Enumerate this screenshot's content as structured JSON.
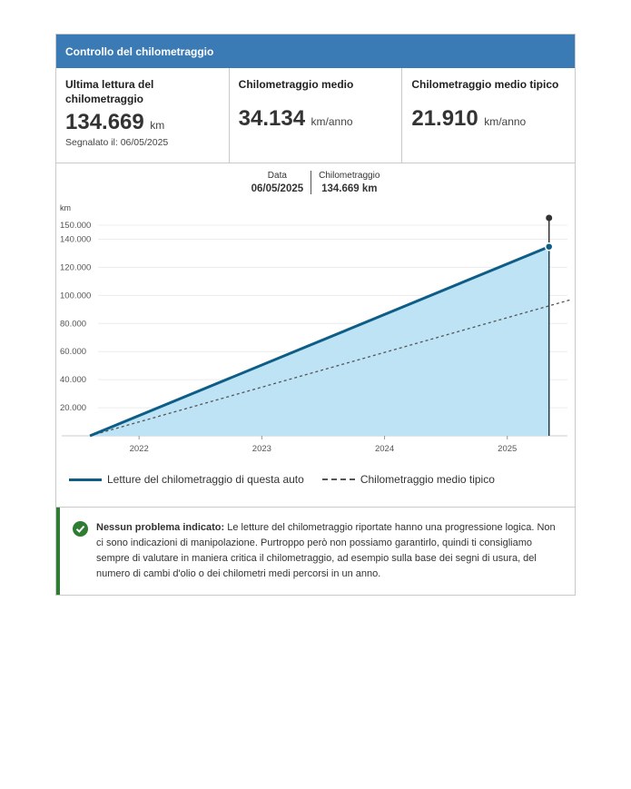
{
  "header": {
    "title": "Controllo del chilometraggio"
  },
  "stats": [
    {
      "label": "Ultima lettura del chilometraggio",
      "value": "134.669",
      "unit": "km",
      "note": "Segnalato il: 06/05/2025"
    },
    {
      "label": "Chilometraggio medio",
      "value": "34.134",
      "unit": "km/anno"
    },
    {
      "label": "Chilometraggio medio tipico",
      "value": "21.910",
      "unit": "km/anno"
    }
  ],
  "tooltip": {
    "date_label": "Data",
    "date_value": "06/05/2025",
    "km_label": "Chilometraggio",
    "km_value": "134.669 km"
  },
  "colors": {
    "header": "#3a7ab5",
    "line": "#0d5d87",
    "fill": "#bde3f5",
    "success": "#2e7d32"
  },
  "chart_data": {
    "type": "area",
    "ylabel": "km",
    "yticks": [
      20000,
      40000,
      60000,
      80000,
      100000,
      120000,
      140000,
      150000
    ],
    "ytick_labels": [
      "20.000",
      "40.000",
      "60.000",
      "80.000",
      "100.000",
      "120.000",
      "140.000",
      "150.000"
    ],
    "xticks": [
      2022,
      2023,
      2024,
      2025
    ],
    "xtick_labels": [
      "2022",
      "2023",
      "2024",
      "2025"
    ],
    "ylim": [
      0,
      150000
    ],
    "xlim": [
      2021.37,
      2025.49
    ],
    "series": [
      {
        "name": "Letture del chilometraggio di questa auto",
        "style": "solid-area",
        "x": [
          2021.6,
          2025.34
        ],
        "y": [
          0,
          134669
        ]
      },
      {
        "name": "Chilometraggio medio tipico",
        "style": "dashed",
        "x": [
          2021.6,
          2025.52
        ],
        "y": [
          0,
          97000
        ]
      }
    ],
    "grid": true,
    "legend": "bottom"
  },
  "notice": {
    "title": "Nessun problema indicato:",
    "text": " Le letture del chilometraggio riportate hanno una progressione logica. Non ci sono indicazioni di manipolazione. Purtroppo però non possiamo garantirlo, quindi ti consigliamo sempre di valutare in maniera critica il chilometraggio, ad esempio sulla base dei segni di usura, del numero di cambi d'olio o dei chilometri medi percorsi in un anno."
  }
}
